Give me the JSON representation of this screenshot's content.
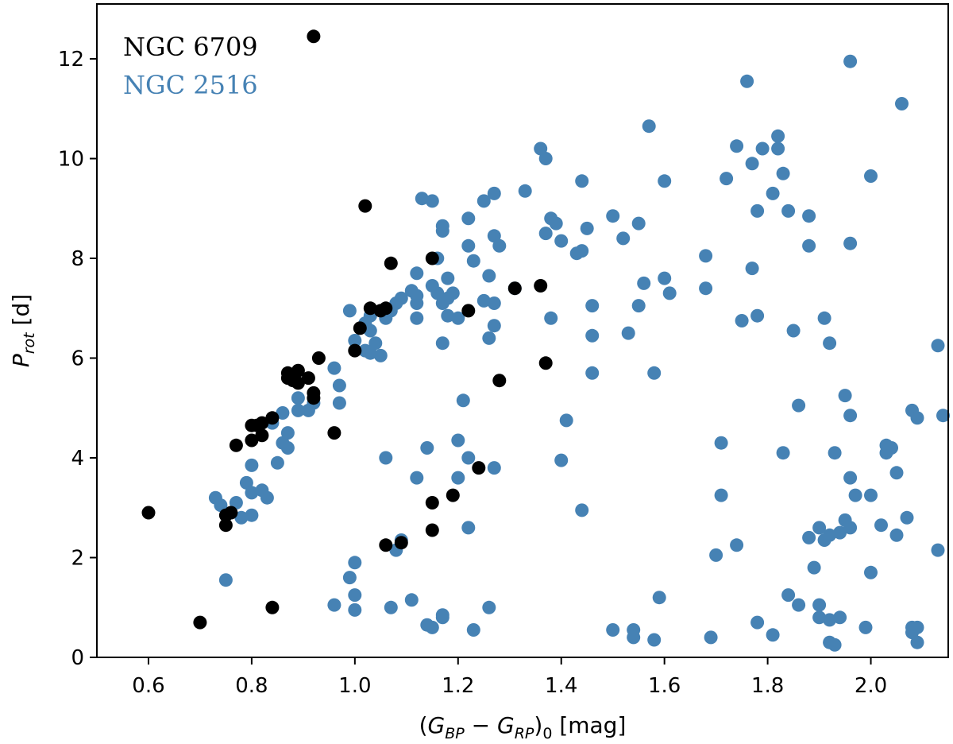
{
  "chart_data": {
    "type": "scatter",
    "xlabel": "(G_BP − G_RP)_0 [mag]",
    "ylabel": "P_rot [d]",
    "xlim": [
      0.5,
      2.15
    ],
    "ylim": [
      0,
      13.1
    ],
    "xticks": [
      0.6,
      0.8,
      1.0,
      1.2,
      1.4,
      1.6,
      1.8,
      2.0
    ],
    "xtick_labels": [
      "0.6",
      "0.8",
      "1.0",
      "1.2",
      "1.4",
      "1.6",
      "1.8",
      "2.0"
    ],
    "yticks": [
      0,
      2,
      4,
      6,
      8,
      10,
      12
    ],
    "ytick_labels": [
      "0",
      "2",
      "4",
      "6",
      "8",
      "10",
      "12"
    ],
    "grid": false,
    "legend_position": "top-left",
    "series": [
      {
        "name": "NGC 2516",
        "color": "#4682b4",
        "points": [
          [
            0.73,
            3.2
          ],
          [
            0.74,
            3.05
          ],
          [
            0.75,
            1.55
          ],
          [
            0.77,
            3.1
          ],
          [
            0.78,
            2.8
          ],
          [
            0.79,
            3.5
          ],
          [
            0.8,
            3.3
          ],
          [
            0.8,
            2.85
          ],
          [
            0.8,
            3.85
          ],
          [
            0.82,
            3.35
          ],
          [
            0.83,
            3.2
          ],
          [
            0.85,
            3.9
          ],
          [
            0.84,
            4.7
          ],
          [
            0.86,
            4.3
          ],
          [
            0.87,
            4.5
          ],
          [
            0.87,
            4.2
          ],
          [
            0.86,
            4.9
          ],
          [
            0.89,
            5.2
          ],
          [
            0.89,
            4.95
          ],
          [
            0.91,
            4.95
          ],
          [
            0.92,
            5.1
          ],
          [
            0.96,
            5.8
          ],
          [
            0.97,
            5.45
          ],
          [
            0.97,
            5.1
          ],
          [
            0.96,
            1.05
          ],
          [
            0.99,
            1.6
          ],
          [
            1.0,
            1.9
          ],
          [
            1.0,
            1.25
          ],
          [
            1.0,
            0.95
          ],
          [
            0.99,
            6.95
          ],
          [
            1.0,
            6.35
          ],
          [
            1.02,
            6.7
          ],
          [
            1.02,
            6.15
          ],
          [
            1.03,
            6.55
          ],
          [
            1.03,
            6.1
          ],
          [
            1.04,
            6.3
          ],
          [
            1.05,
            6.05
          ],
          [
            1.03,
            6.85
          ],
          [
            1.06,
            6.8
          ],
          [
            1.07,
            6.95
          ],
          [
            1.08,
            7.1
          ],
          [
            1.09,
            7.2
          ],
          [
            1.06,
            4.0
          ],
          [
            1.07,
            1.0
          ],
          [
            1.08,
            2.15
          ],
          [
            1.09,
            2.35
          ],
          [
            1.11,
            7.35
          ],
          [
            1.12,
            7.25
          ],
          [
            1.12,
            7.1
          ],
          [
            1.12,
            6.8
          ],
          [
            1.12,
            7.7
          ],
          [
            1.13,
            9.2
          ],
          [
            1.12,
            3.6
          ],
          [
            1.11,
            1.15
          ],
          [
            1.14,
            4.2
          ],
          [
            1.14,
            0.65
          ],
          [
            1.15,
            7.45
          ],
          [
            1.15,
            0.6
          ],
          [
            1.15,
            9.15
          ],
          [
            1.16,
            7.3
          ],
          [
            1.16,
            8.0
          ],
          [
            1.17,
            7.1
          ],
          [
            1.17,
            6.3
          ],
          [
            1.17,
            8.55
          ],
          [
            1.17,
            8.65
          ],
          [
            1.18,
            7.2
          ],
          [
            1.18,
            6.85
          ],
          [
            1.18,
            7.6
          ],
          [
            1.17,
            0.8
          ],
          [
            1.17,
            0.85
          ],
          [
            1.19,
            7.3
          ],
          [
            1.2,
            6.8
          ],
          [
            1.2,
            3.6
          ],
          [
            1.2,
            4.35
          ],
          [
            1.21,
            5.15
          ],
          [
            1.22,
            8.25
          ],
          [
            1.22,
            8.8
          ],
          [
            1.22,
            2.6
          ],
          [
            1.22,
            4.0
          ],
          [
            1.23,
            7.95
          ],
          [
            1.23,
            0.55
          ],
          [
            1.25,
            9.15
          ],
          [
            1.25,
            7.15
          ],
          [
            1.26,
            6.4
          ],
          [
            1.26,
            7.65
          ],
          [
            1.27,
            7.1
          ],
          [
            1.27,
            6.65
          ],
          [
            1.27,
            3.8
          ],
          [
            1.27,
            9.3
          ],
          [
            1.27,
            8.45
          ],
          [
            1.28,
            8.25
          ],
          [
            1.26,
            1.0
          ],
          [
            1.31,
            7.4
          ],
          [
            1.33,
            9.35
          ],
          [
            1.36,
            10.2
          ],
          [
            1.37,
            10.0
          ],
          [
            1.37,
            8.5
          ],
          [
            1.38,
            6.8
          ],
          [
            1.38,
            8.8
          ],
          [
            1.39,
            8.7
          ],
          [
            1.4,
            8.35
          ],
          [
            1.41,
            4.75
          ],
          [
            1.4,
            3.95
          ],
          [
            1.43,
            8.1
          ],
          [
            1.44,
            9.55
          ],
          [
            1.44,
            8.15
          ],
          [
            1.44,
            2.95
          ],
          [
            1.45,
            8.6
          ],
          [
            1.46,
            7.05
          ],
          [
            1.46,
            6.45
          ],
          [
            1.46,
            5.7
          ],
          [
            1.5,
            8.85
          ],
          [
            1.5,
            0.55
          ],
          [
            1.52,
            8.4
          ],
          [
            1.53,
            6.5
          ],
          [
            1.54,
            0.55
          ],
          [
            1.54,
            0.4
          ],
          [
            1.55,
            7.05
          ],
          [
            1.55,
            8.7
          ],
          [
            1.56,
            7.5
          ],
          [
            1.57,
            10.65
          ],
          [
            1.58,
            5.7
          ],
          [
            1.58,
            0.35
          ],
          [
            1.59,
            1.2
          ],
          [
            1.6,
            9.55
          ],
          [
            1.6,
            7.6
          ],
          [
            1.61,
            7.3
          ],
          [
            1.68,
            8.05
          ],
          [
            1.68,
            7.4
          ],
          [
            1.69,
            0.4
          ],
          [
            1.7,
            2.05
          ],
          [
            1.71,
            4.3
          ],
          [
            1.71,
            3.25
          ],
          [
            1.72,
            9.6
          ],
          [
            1.74,
            2.25
          ],
          [
            1.74,
            10.25
          ],
          [
            1.76,
            11.55
          ],
          [
            1.75,
            6.75
          ],
          [
            1.77,
            9.9
          ],
          [
            1.77,
            7.8
          ],
          [
            1.78,
            8.95
          ],
          [
            1.78,
            6.85
          ],
          [
            1.78,
            0.7
          ],
          [
            1.79,
            10.2
          ],
          [
            1.81,
            9.3
          ],
          [
            1.81,
            0.45
          ],
          [
            1.82,
            10.45
          ],
          [
            1.82,
            10.2
          ],
          [
            1.83,
            9.7
          ],
          [
            1.83,
            4.1
          ],
          [
            1.84,
            8.95
          ],
          [
            1.84,
            1.25
          ],
          [
            1.85,
            6.55
          ],
          [
            1.86,
            5.05
          ],
          [
            1.86,
            1.05
          ],
          [
            1.88,
            8.85
          ],
          [
            1.88,
            8.25
          ],
          [
            1.88,
            2.4
          ],
          [
            1.89,
            1.8
          ],
          [
            1.9,
            2.6
          ],
          [
            1.9,
            1.05
          ],
          [
            1.9,
            0.8
          ],
          [
            1.91,
            6.8
          ],
          [
            1.91,
            2.35
          ],
          [
            1.92,
            6.3
          ],
          [
            1.92,
            2.45
          ],
          [
            1.92,
            0.3
          ],
          [
            1.92,
            0.75
          ],
          [
            1.93,
            4.1
          ],
          [
            1.93,
            0.25
          ],
          [
            1.94,
            2.5
          ],
          [
            1.94,
            0.8
          ],
          [
            1.95,
            5.25
          ],
          [
            1.95,
            2.75
          ],
          [
            1.96,
            4.85
          ],
          [
            1.96,
            3.6
          ],
          [
            1.96,
            2.6
          ],
          [
            1.96,
            11.95
          ],
          [
            1.96,
            8.3
          ],
          [
            1.97,
            3.25
          ],
          [
            1.99,
            0.6
          ],
          [
            2.0,
            9.65
          ],
          [
            2.0,
            3.25
          ],
          [
            2.0,
            1.7
          ],
          [
            2.02,
            2.65
          ],
          [
            2.03,
            4.25
          ],
          [
            2.03,
            4.1
          ],
          [
            2.04,
            4.2
          ],
          [
            2.05,
            3.7
          ],
          [
            2.05,
            2.45
          ],
          [
            2.06,
            11.1
          ],
          [
            2.07,
            2.8
          ],
          [
            2.08,
            4.95
          ],
          [
            2.08,
            0.5
          ],
          [
            2.08,
            0.6
          ],
          [
            2.09,
            4.8
          ],
          [
            2.09,
            0.6
          ],
          [
            2.09,
            0.3
          ],
          [
            2.13,
            6.25
          ],
          [
            2.13,
            2.15
          ],
          [
            2.14,
            4.85
          ]
        ]
      },
      {
        "name": "NGC 6709",
        "color": "#000000",
        "points": [
          [
            0.6,
            2.9
          ],
          [
            0.7,
            0.7
          ],
          [
            0.75,
            2.85
          ],
          [
            0.75,
            2.65
          ],
          [
            0.76,
            2.9
          ],
          [
            0.77,
            4.25
          ],
          [
            0.8,
            4.35
          ],
          [
            0.8,
            4.65
          ],
          [
            0.81,
            4.65
          ],
          [
            0.82,
            4.7
          ],
          [
            0.82,
            4.45
          ],
          [
            0.84,
            4.8
          ],
          [
            0.84,
            1.0
          ],
          [
            0.87,
            5.6
          ],
          [
            0.87,
            5.7
          ],
          [
            0.88,
            5.55
          ],
          [
            0.89,
            5.75
          ],
          [
            0.89,
            5.5
          ],
          [
            0.91,
            5.6
          ],
          [
            0.92,
            5.3
          ],
          [
            0.92,
            5.2
          ],
          [
            0.93,
            6.0
          ],
          [
            0.96,
            4.5
          ],
          [
            0.92,
            12.45
          ],
          [
            1.0,
            6.15
          ],
          [
            1.01,
            6.6
          ],
          [
            1.02,
            9.05
          ],
          [
            1.03,
            7.0
          ],
          [
            1.05,
            6.95
          ],
          [
            1.06,
            7.0
          ],
          [
            1.07,
            7.9
          ],
          [
            1.06,
            2.25
          ],
          [
            1.09,
            2.3
          ],
          [
            1.15,
            8.0
          ],
          [
            1.15,
            3.1
          ],
          [
            1.15,
            2.55
          ],
          [
            1.19,
            3.25
          ],
          [
            1.22,
            6.95
          ],
          [
            1.24,
            3.8
          ],
          [
            1.28,
            5.55
          ],
          [
            1.31,
            7.4
          ],
          [
            1.36,
            7.45
          ],
          [
            1.37,
            5.9
          ]
        ]
      }
    ]
  },
  "legend": [
    {
      "label": "NGC 6709",
      "color": "#000000"
    },
    {
      "label": "NGC 2516",
      "color": "#4682b4"
    }
  ]
}
